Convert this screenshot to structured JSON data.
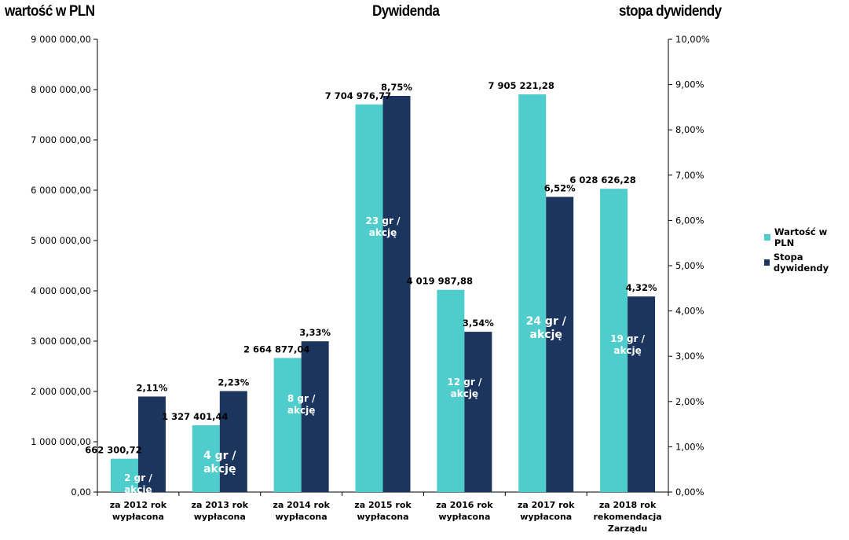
{
  "chart_data": {
    "type": "bar",
    "title": "Dywidenda",
    "ylabel_left": "wartość w PLN",
    "ylabel_right": "stopa dywidendy",
    "categories": [
      [
        "za 2012 rok",
        "wypłacona"
      ],
      [
        "za 2013 rok",
        "wypłacona"
      ],
      [
        "za 2014 rok",
        "wypłacona"
      ],
      [
        "za 2015 rok",
        "wypłacona"
      ],
      [
        "za 2016 rok",
        "wypłacona"
      ],
      [
        "za 2017 rok",
        "wypłacona"
      ],
      [
        "za 2018 rok",
        "rekomendacja",
        "Zarządu"
      ]
    ],
    "ylim_left": [
      0,
      9000000
    ],
    "ylim_right": [
      0,
      10
    ],
    "yticks_left": [
      "0,00",
      "1 000 000,00",
      "2 000 000,00",
      "3 000 000,00",
      "4 000 000,00",
      "5 000 000,00",
      "6 000 000,00",
      "7 000 000,00",
      "8 000 000,00",
      "9 000 000,00"
    ],
    "yticks_right": [
      "0,00%",
      "1,00%",
      "2,00%",
      "3,00%",
      "4,00%",
      "5,00%",
      "6,00%",
      "7,00%",
      "8,00%",
      "9,00%",
      "10,00%"
    ],
    "grid": false,
    "legend_position": "right",
    "series": [
      {
        "name": "Wartość w PLN",
        "axis": "left",
        "color": "#4ECDCC",
        "values": [
          662300.72,
          1327401.44,
          2664877.04,
          7704976.77,
          4019987.88,
          7905221.28,
          6028626.28
        ],
        "labels": [
          "662 300,72",
          "1 327 401,44",
          "2 664 877,04",
          "7 704 976,77",
          "4 019 987,88",
          "7 905 221,28",
          "6 028 626,28"
        ]
      },
      {
        "name": "Stopa dywidendy",
        "axis": "right",
        "color": "#1C355E",
        "values": [
          2.11,
          2.23,
          3.33,
          8.75,
          3.54,
          6.52,
          4.32
        ],
        "labels": [
          "2,11%",
          "2,23%",
          "3,33%",
          "8,75%",
          "3,54%",
          "6,52%",
          "4,32%"
        ]
      }
    ],
    "annotations": [
      [
        "2 gr /",
        "akcję"
      ],
      [
        "4 gr /",
        "akcję"
      ],
      [
        "8 gr /",
        "akcję"
      ],
      [
        "23 gr /",
        "akcję"
      ],
      [
        "12 gr /",
        "akcję"
      ],
      [
        "24 gr /",
        "akcję"
      ],
      [
        "19 gr /",
        "akcję"
      ]
    ]
  }
}
